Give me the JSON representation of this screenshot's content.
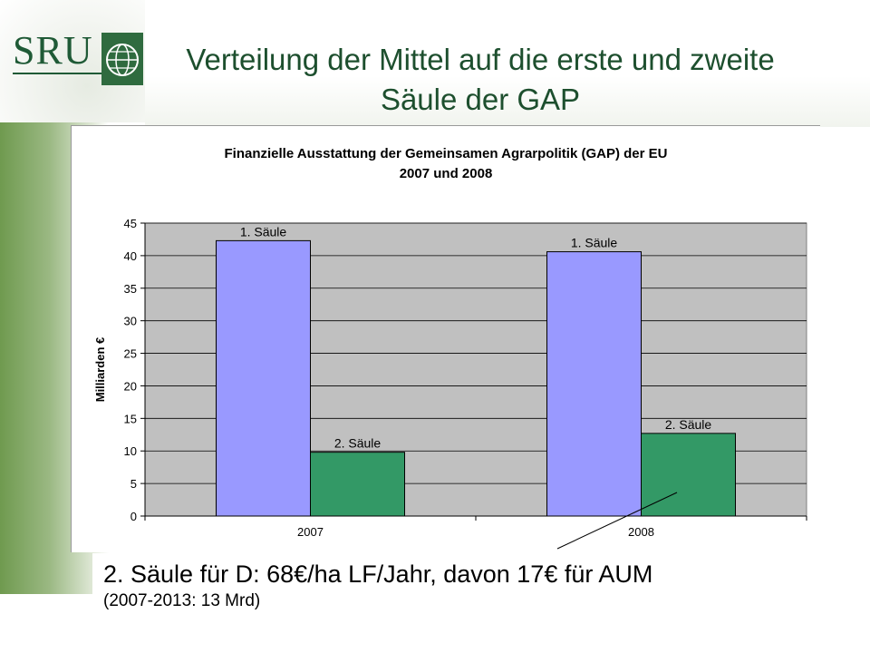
{
  "logo": {
    "text": "SRU",
    "icon": "globe-icon"
  },
  "slide": {
    "title": "Verteilung der Mittel auf die erste und zweite Säule der GAP"
  },
  "chart_data": {
    "type": "bar",
    "title": "Finanzielle Ausstattung der Gemeinsamen Agrarpolitik (GAP) der EU 2007 und 2008",
    "categories": [
      "2007",
      "2008"
    ],
    "series": [
      {
        "name": "1. Säule",
        "values": [
          42.3,
          40.6
        ],
        "color": "#9999ff"
      },
      {
        "name": "2. Säule",
        "values": [
          9.8,
          12.7
        ],
        "color": "#339966"
      }
    ],
    "xlabel": "",
    "ylabel": "Milliarden €",
    "ylim": [
      0,
      45
    ],
    "yticks": [
      0,
      5,
      10,
      15,
      20,
      25,
      30,
      35,
      40,
      45
    ],
    "grid": true,
    "plot_background": "#c0c0c0",
    "legend": "none",
    "data_labels": "series name above each bar"
  },
  "note": {
    "main": "2. Säule für D: 68€/ha LF/Jahr, davon 17€ für AUM",
    "sub": "(2007-2013: 13 Mrd)"
  }
}
